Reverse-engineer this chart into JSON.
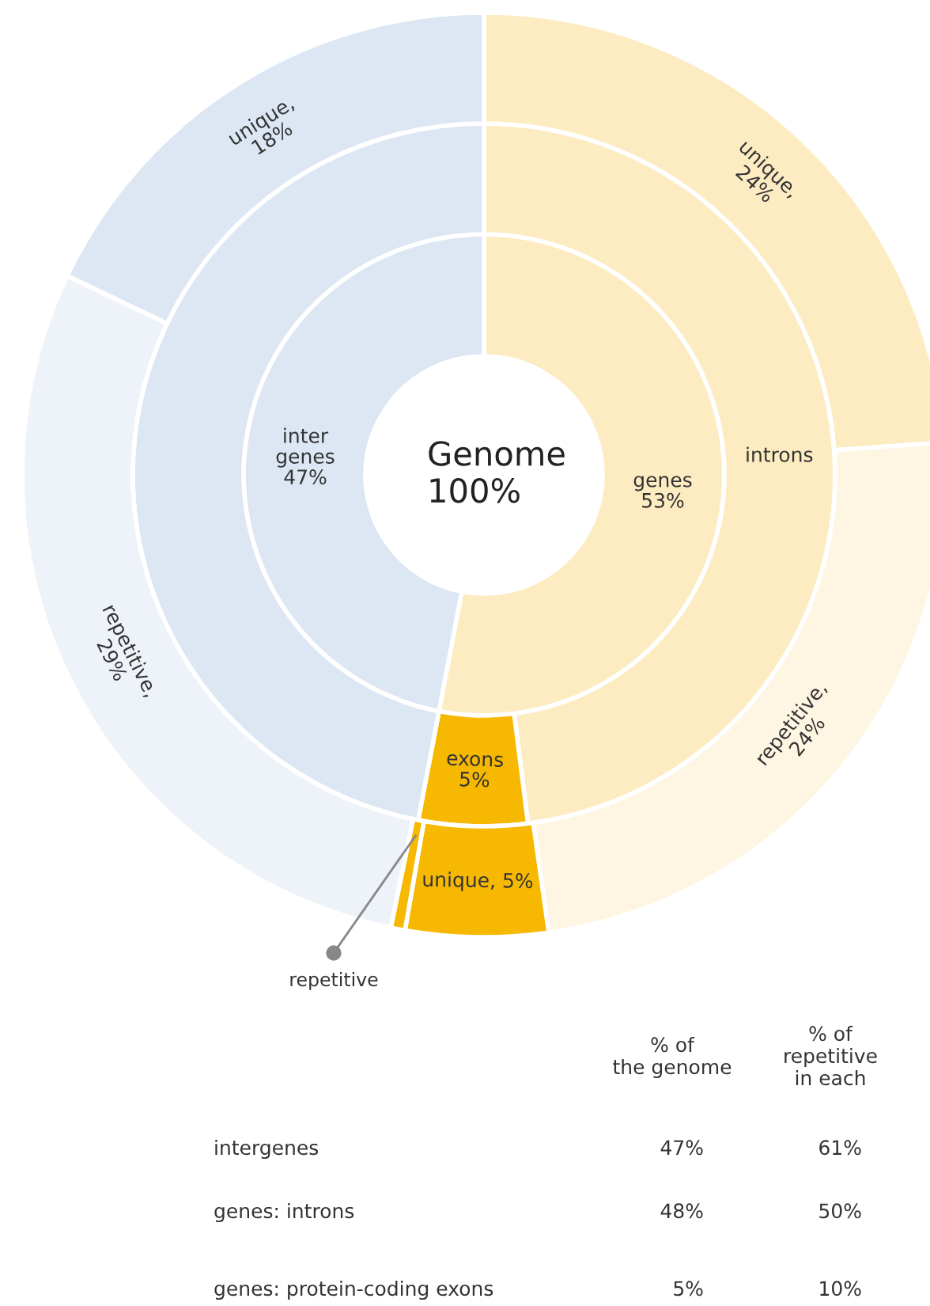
{
  "chart_data": [
    {
      "type": "donut",
      "title": "Genome\n100%",
      "series": [
        {
          "values": [
            53,
            47
          ],
          "colors": [
            "#fdebc1",
            "#dce7f3"
          ],
          "value_labels": [
            "genes\n53%",
            "inter\ngenes\n47%"
          ]
        },
        {
          "values": [
            48,
            5,
            47
          ],
          "colors": [
            "#fdebc1",
            "#f6b800",
            "#dce7f3"
          ],
          "value_labels": [
            "introns",
            "exons\n5%",
            null
          ]
        },
        {
          "values": [
            24,
            24,
            5,
            0.5,
            29,
            18
          ],
          "colors": [
            "#fdebc1",
            "#fef6e3",
            "#f6b800",
            "#f6b800",
            "#eef3f9",
            "#dce7f3"
          ],
          "value_labels": [
            "unique,\n24%",
            "repetitive,\n24%",
            "unique, 5%",
            "repetitive",
            "repetitive,\n29%",
            "unique,\n18%"
          ]
        }
      ]
    },
    {
      "type": "other",
      "categories": [
        "intergenes",
        "genes: introns",
        "genes: protein-coding exons"
      ],
      "series": [
        {
          "name": "% of\nthe genome",
          "values": [
            47,
            48,
            5
          ],
          "value_labels": [
            "47%",
            "48%",
            "5%"
          ]
        },
        {
          "name": "% of\nrepetitive\nin each",
          "values": [
            61,
            50,
            10
          ],
          "value_labels": [
            "61%",
            "50%",
            "10%"
          ]
        }
      ]
    }
  ]
}
